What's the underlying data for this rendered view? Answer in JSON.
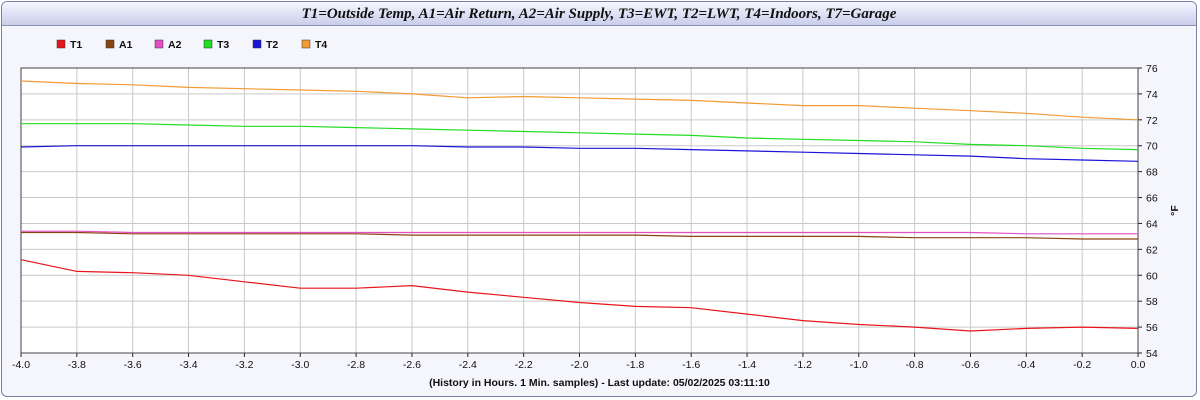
{
  "chart_data": {
    "type": "line",
    "title": "T1=Outside Temp, A1=Air Return, A2=Air Supply, T3=EWT, T2=LWT, T4=Indoors, T7=Garage",
    "xlabel": "(History in Hours. 1 Min. samples) - Last update: 05/02/2025 03:11:10",
    "ylabel": "°F",
    "xlim": [
      -4.0,
      0.0
    ],
    "ylim": [
      54,
      76
    ],
    "x_ticks": [
      "-4.0",
      "-3.8",
      "-3.6",
      "-3.4",
      "-3.2",
      "-3.0",
      "-2.8",
      "-2.6",
      "-2.4",
      "-2.2",
      "-2.0",
      "-1.8",
      "-1.6",
      "-1.4",
      "-1.2",
      "-1.0",
      "-0.8",
      "-0.6",
      "-0.4",
      "-0.2",
      "0.0"
    ],
    "y_ticks": [
      "54",
      "56",
      "58",
      "60",
      "62",
      "64",
      "66",
      "68",
      "70",
      "72",
      "74",
      "76"
    ],
    "grid": true,
    "legend_position": "top-left",
    "y_axis_side": "right",
    "x": [
      -4.0,
      -3.8,
      -3.6,
      -3.4,
      -3.2,
      -3.0,
      -2.8,
      -2.6,
      -2.4,
      -2.2,
      -2.0,
      -1.8,
      -1.6,
      -1.4,
      -1.2,
      -1.0,
      -0.8,
      -0.6,
      -0.4,
      -0.2,
      0.0
    ],
    "series": [
      {
        "name": "T1",
        "color": "#e8151b",
        "values": [
          61.2,
          60.3,
          60.2,
          60.0,
          59.5,
          59.0,
          59.0,
          59.2,
          58.7,
          58.3,
          57.9,
          57.6,
          57.5,
          57.0,
          56.5,
          56.2,
          56.0,
          55.7,
          55.9,
          56.0,
          55.9
        ]
      },
      {
        "name": "A1",
        "color": "#8b4513",
        "values": [
          63.3,
          63.3,
          63.2,
          63.2,
          63.2,
          63.2,
          63.2,
          63.1,
          63.1,
          63.1,
          63.1,
          63.1,
          63.0,
          63.0,
          63.0,
          63.0,
          62.9,
          62.9,
          62.9,
          62.8,
          62.8
        ]
      },
      {
        "name": "A2",
        "color": "#e14fc1",
        "values": [
          63.4,
          63.4,
          63.3,
          63.3,
          63.3,
          63.3,
          63.3,
          63.3,
          63.3,
          63.3,
          63.3,
          63.3,
          63.3,
          63.3,
          63.3,
          63.3,
          63.3,
          63.3,
          63.2,
          63.2,
          63.2
        ]
      },
      {
        "name": "T3",
        "color": "#22dd22",
        "values": [
          71.7,
          71.7,
          71.7,
          71.6,
          71.5,
          71.5,
          71.4,
          71.3,
          71.2,
          71.1,
          71.0,
          70.9,
          70.8,
          70.6,
          70.5,
          70.4,
          70.3,
          70.1,
          70.0,
          69.8,
          69.7
        ]
      },
      {
        "name": "T2",
        "color": "#1a14d6",
        "values": [
          69.9,
          70.0,
          70.0,
          70.0,
          70.0,
          70.0,
          70.0,
          70.0,
          69.9,
          69.9,
          69.8,
          69.8,
          69.7,
          69.6,
          69.5,
          69.4,
          69.3,
          69.2,
          69.0,
          68.9,
          68.8
        ]
      },
      {
        "name": "T4",
        "color": "#f39a33",
        "values": [
          75.0,
          74.8,
          74.7,
          74.5,
          74.4,
          74.3,
          74.2,
          74.0,
          73.7,
          73.8,
          73.7,
          73.6,
          73.5,
          73.3,
          73.1,
          73.1,
          72.9,
          72.7,
          72.5,
          72.2,
          72.0
        ]
      }
    ]
  }
}
